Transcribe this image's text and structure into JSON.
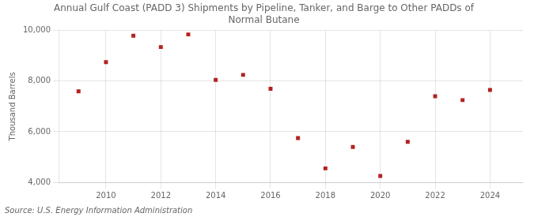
{
  "chart_data": {
    "type": "scatter",
    "title": "Annual Gulf Coast (PADD 3) Shipments by Pipeline, Tanker, and Barge to Other PADDs of\nNormal Butane",
    "ylabel": "Thousand Barrels",
    "source": "Source: U.S. Energy Information Administration",
    "x": [
      2009,
      2010,
      2011,
      2012,
      2013,
      2014,
      2015,
      2016,
      2017,
      2018,
      2019,
      2020,
      2021,
      2022,
      2023,
      2024
    ],
    "values": [
      7600,
      8750,
      9800,
      9350,
      9850,
      8050,
      8250,
      7700,
      5750,
      4550,
      5400,
      4250,
      5600,
      7400,
      7250,
      7650
    ],
    "color": "#b22222",
    "marker": "square",
    "xlim": [
      2008.3,
      2025.2
    ],
    "xticks": [
      2010,
      2012,
      2014,
      2016,
      2018,
      2020,
      2022,
      2024
    ],
    "ylim": [
      4000,
      10000
    ],
    "yticks": [
      {
        "value": 4000,
        "label": "4,000"
      },
      {
        "value": 6000,
        "label": "6,000"
      },
      {
        "value": 8000,
        "label": "8,000"
      },
      {
        "value": 10000,
        "label": "10,000"
      }
    ],
    "grid": true
  }
}
